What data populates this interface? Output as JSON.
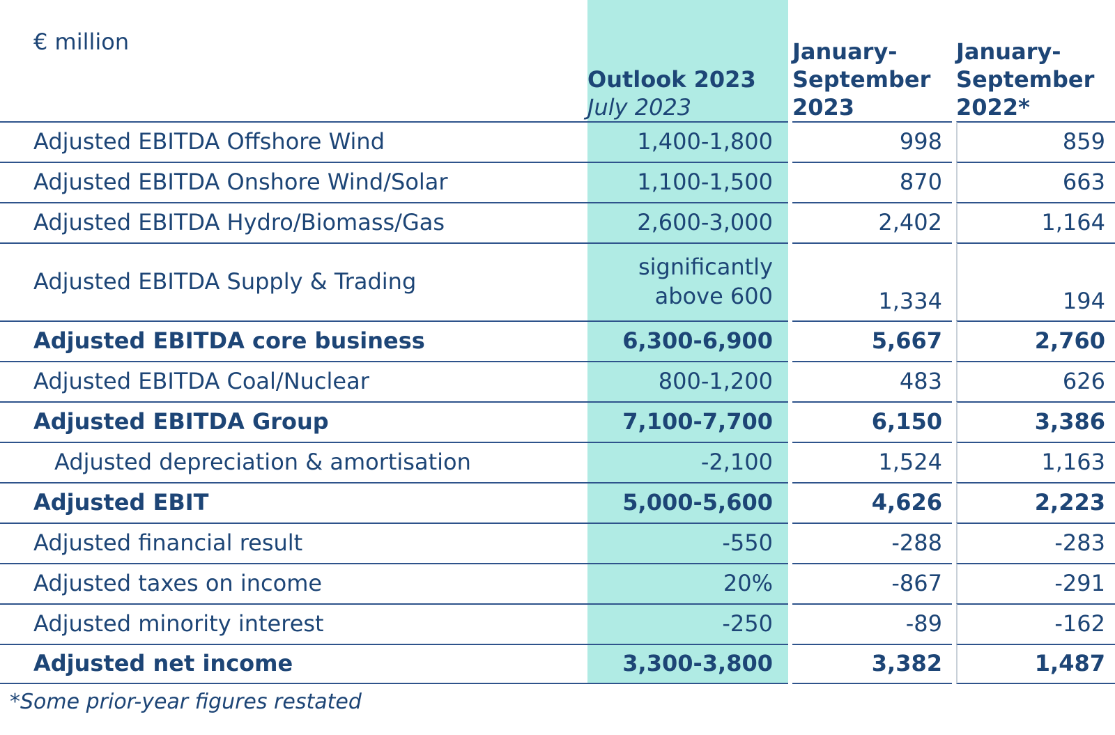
{
  "unit_label": "€ million",
  "columns": {
    "outlook": {
      "title": "Outlook 2023",
      "subtitle": "July 2023"
    },
    "jan_sep_2023": {
      "lines": [
        "January-",
        "September",
        "2023"
      ]
    },
    "jan_sep_2022": {
      "lines": [
        "January-",
        "September",
        "2022*"
      ]
    }
  },
  "rows": [
    {
      "label": "Adjusted EBITDA Offshore Wind",
      "outlook": "1,400-1,800",
      "sep2023": "998",
      "sep2022": "859"
    },
    {
      "label": "Adjusted EBITDA Onshore Wind/Solar",
      "outlook": "1,100-1,500",
      "sep2023": "870",
      "sep2022": "663"
    },
    {
      "label": "Adjusted EBITDA Hydro/Biomass/Gas",
      "outlook": "2,600-3,000",
      "sep2023": "2,402",
      "sep2022": "1,164"
    },
    {
      "label": "Adjusted EBITDA Supply & Trading",
      "outlook": "significantly above 600",
      "sep2023": "1,334",
      "sep2022": "194"
    },
    {
      "label": "Adjusted EBITDA core business",
      "outlook": "6,300-6,900",
      "sep2023": "5,667",
      "sep2022": "2,760"
    },
    {
      "label": "Adjusted EBITDA Coal/Nuclear",
      "outlook": "800-1,200",
      "sep2023": "483",
      "sep2022": "626"
    },
    {
      "label": "Adjusted EBITDA Group",
      "outlook": "7,100-7,700",
      "sep2023": "6,150",
      "sep2022": "3,386"
    },
    {
      "label": "Adjusted depreciation & amortisation",
      "outlook": "-2,100",
      "sep2023": "1,524",
      "sep2022": "1,163"
    },
    {
      "label": "Adjusted EBIT",
      "outlook": "5,000-5,600",
      "sep2023": "4,626",
      "sep2022": "2,223"
    },
    {
      "label": "Adjusted financial result",
      "outlook": "-550",
      "sep2023": "-288",
      "sep2022": "-283"
    },
    {
      "label": "Adjusted taxes on income",
      "outlook": "20%",
      "sep2023": "-867",
      "sep2022": "-291"
    },
    {
      "label": "Adjusted minority interest",
      "outlook": "-250",
      "sep2023": "-89",
      "sep2022": "-162"
    },
    {
      "label": "Adjusted net income",
      "outlook": "3,300-3,800",
      "sep2023": "3,382",
      "sep2022": "1,487"
    }
  ],
  "footnote": "*Some prior-year figures restated",
  "colors": {
    "highlight_teal": "#b0ebe4",
    "text_navy": "#1d4576",
    "border_navy": "#2e538b",
    "column_separator_gray": "#c8d0d8"
  }
}
